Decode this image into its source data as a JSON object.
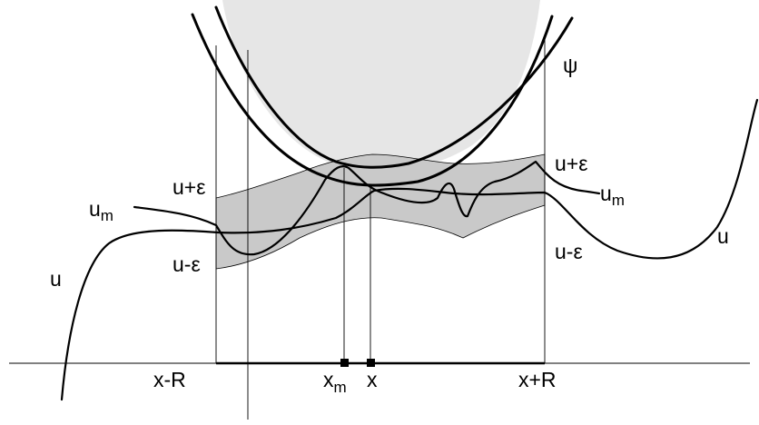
{
  "labels": {
    "psi": "ψ",
    "u_plus_eps_left": "u+ε",
    "u_minus_eps_left": "u-ε",
    "u_plus_eps_right": "u+ε",
    "u_minus_eps_right": "u-ε",
    "u_m_left": "u",
    "u_m_left_sub": "m",
    "u_m_right": "u",
    "u_m_right_sub": "m",
    "u_left": "u",
    "u_right": "u",
    "x_minus_r": "x-R",
    "x_m": "x",
    "x_m_sub": "m",
    "x": "x",
    "x_plus_r": "x+R"
  },
  "colors": {
    "band_fill": "#c9c9c9",
    "region_fill": "#e6e6e6",
    "stroke": "#000000"
  }
}
